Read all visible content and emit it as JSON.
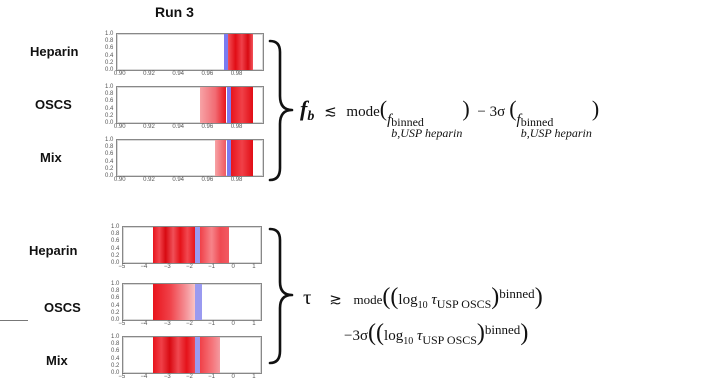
{
  "title": "Run 3",
  "panels": [
    {
      "labels": [
        "Heparin",
        "OSCS",
        "Mix"
      ],
      "yticks": [
        "1.0",
        "0.8",
        "0.6",
        "0.4",
        "0.2",
        "0.0"
      ],
      "xticks": [
        "0.90",
        "0.92",
        "0.94",
        "0.96",
        "0.98"
      ],
      "formula": {
        "lead_symbol": "f",
        "lead_sub": "b",
        "relation": "≲",
        "mode": "mode",
        "var": "f",
        "sub": "b,USP heparin",
        "sup": "binned",
        "minus_sigma": "− 3σ"
      }
    },
    {
      "labels": [
        "Heparin",
        "OSCS",
        "Mix"
      ],
      "yticks": [
        "1.0",
        "0.8",
        "0.6",
        "0.4",
        "0.2",
        "0.0"
      ],
      "xticks": [
        "−5",
        "−4",
        "−3",
        "−2",
        "−1",
        "0",
        "1"
      ],
      "formula": {
        "lead_symbol": "τ",
        "relation": "≳",
        "mode": "mode",
        "log": "log",
        "log_sub": "10",
        "tau": "τ",
        "tau_sub": "USP OSCS",
        "sup": "binned",
        "minus_sigma": "−3σ"
      }
    }
  ],
  "colors": {
    "marker_blue": "#7b7bf0",
    "red": "#e8141c",
    "light_red": "#f7a3a6"
  }
}
